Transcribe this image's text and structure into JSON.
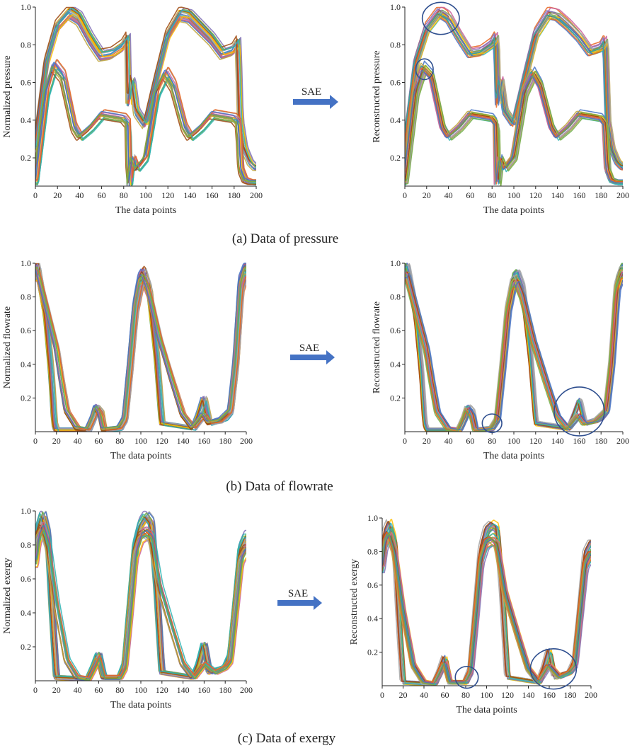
{
  "figure": {
    "palette": [
      "#e8641e",
      "#4472c4",
      "#70ad47",
      "#ffc000",
      "#7f6fb5",
      "#a5a5a5",
      "#9e480e",
      "#2bb3b1",
      "#c95e9a",
      "#bfa53a"
    ],
    "ellipse_color": "#2f4f8f",
    "arrow_color": "#4472c4",
    "arrow_label": "SAE",
    "rows": [
      {
        "caption": "(a) Data of pressure",
        "kind": "pressure",
        "left_ylabel": "Normalized pressure",
        "right_ylabel": "Reconstructed pressure"
      },
      {
        "caption": "(b) Data of flowrate",
        "kind": "flowrate",
        "left_ylabel": "Normalized flowrate",
        "right_ylabel": "Reconstructed flowrate"
      },
      {
        "caption": "(c) Data of exergy",
        "kind": "exergy",
        "left_ylabel": "Normalized exergy",
        "right_ylabel": "Reconstructed exergy"
      }
    ]
  },
  "chart_data": [
    {
      "id": "pressure-normalized",
      "type": "line",
      "title": "",
      "xlabel": "The data points",
      "ylabel": "Normalized pressure",
      "xlim": [
        0,
        200
      ],
      "ylim": [
        0.05,
        1.0
      ],
      "xticks": [
        0,
        20,
        40,
        60,
        80,
        100,
        120,
        140,
        160,
        180,
        200
      ],
      "yticks": [
        0.2,
        0.4,
        0.6,
        0.8,
        1.0
      ],
      "grid": false,
      "legend": "none",
      "series": [
        {
          "x": [
            0,
            10,
            20,
            32,
            40,
            50,
            60,
            70,
            80,
            84,
            85,
            88,
            92,
            100,
            110,
            120,
            132,
            140,
            150,
            160,
            170,
            180,
            184,
            186,
            190,
            195,
            200
          ],
          "y": [
            0.25,
            0.7,
            0.9,
            0.98,
            0.95,
            0.84,
            0.75,
            0.76,
            0.8,
            0.84,
            0.48,
            0.62,
            0.45,
            0.38,
            0.62,
            0.85,
            0.97,
            0.96,
            0.9,
            0.84,
            0.76,
            0.78,
            0.82,
            0.4,
            0.25,
            0.18,
            0.15
          ]
        },
        {
          "x": [
            0,
            10,
            17,
            25,
            35,
            40,
            50,
            60,
            70,
            80,
            84,
            85,
            88,
            92,
            100,
            110,
            118,
            125,
            135,
            140,
            150,
            160,
            170,
            180,
            184,
            186,
            190,
            195,
            200
          ],
          "y": [
            0.07,
            0.55,
            0.69,
            0.63,
            0.36,
            0.31,
            0.36,
            0.43,
            0.42,
            0.41,
            0.38,
            0.05,
            0.2,
            0.14,
            0.2,
            0.55,
            0.65,
            0.58,
            0.36,
            0.31,
            0.36,
            0.43,
            0.42,
            0.41,
            0.38,
            0.14,
            0.08,
            0.07,
            0.07
          ]
        }
      ]
    },
    {
      "id": "pressure-reconstructed",
      "type": "line",
      "title": "",
      "xlabel": "The data points",
      "ylabel": "Reconstructed pressure",
      "xlim": [
        0,
        200
      ],
      "ylim": [
        0.05,
        1.0
      ],
      "xticks": [
        0,
        20,
        40,
        60,
        80,
        100,
        120,
        140,
        160,
        180,
        200
      ],
      "yticks": [
        0.2,
        0.4,
        0.6,
        0.8,
        1.0
      ],
      "grid": false,
      "legend": "none",
      "series": [
        {
          "x": [
            0,
            10,
            20,
            32,
            40,
            50,
            60,
            70,
            80,
            84,
            85,
            88,
            92,
            100,
            110,
            120,
            132,
            140,
            150,
            160,
            170,
            180,
            184,
            186,
            190,
            195,
            200
          ],
          "y": [
            0.25,
            0.7,
            0.88,
            0.97,
            0.94,
            0.84,
            0.75,
            0.76,
            0.8,
            0.84,
            0.48,
            0.62,
            0.45,
            0.38,
            0.62,
            0.85,
            0.96,
            0.95,
            0.9,
            0.84,
            0.76,
            0.78,
            0.82,
            0.4,
            0.25,
            0.18,
            0.15
          ]
        },
        {
          "x": [
            0,
            10,
            17,
            25,
            35,
            40,
            50,
            60,
            70,
            80,
            84,
            85,
            88,
            92,
            100,
            110,
            118,
            125,
            135,
            140,
            150,
            160,
            170,
            180,
            184,
            186,
            190,
            195,
            200
          ],
          "y": [
            0.07,
            0.55,
            0.68,
            0.63,
            0.36,
            0.31,
            0.36,
            0.43,
            0.42,
            0.41,
            0.38,
            0.05,
            0.2,
            0.14,
            0.2,
            0.55,
            0.65,
            0.58,
            0.36,
            0.31,
            0.36,
            0.43,
            0.42,
            0.41,
            0.38,
            0.14,
            0.08,
            0.07,
            0.07
          ]
        }
      ],
      "annotations": [
        {
          "shape": "ellipse",
          "cx": 33,
          "cy": 0.94,
          "rx": 17,
          "ry": 0.085
        },
        {
          "shape": "ellipse",
          "cx": 18,
          "cy": 0.67,
          "rx": 8,
          "ry": 0.055
        }
      ]
    },
    {
      "id": "flowrate-normalized",
      "type": "line",
      "title": "",
      "xlabel": "The data points",
      "ylabel": "Normalized flowrate",
      "xlim": [
        0,
        200
      ],
      "ylim": [
        0,
        1.0
      ],
      "xticks": [
        0,
        20,
        40,
        60,
        80,
        100,
        120,
        140,
        160,
        180,
        200
      ],
      "yticks": [
        0.2,
        0.4,
        0.6,
        0.8,
        1.0
      ],
      "grid": false,
      "legend": "none",
      "series": [
        {
          "x": [
            0,
            2,
            10,
            15,
            18,
            20,
            50,
            55,
            58,
            62,
            65,
            80,
            85,
            90,
            95,
            100,
            103,
            108,
            115,
            120,
            150,
            155,
            160,
            165,
            180,
            185,
            190,
            195,
            200
          ],
          "y": [
            0.95,
            0.98,
            0.7,
            0.35,
            0.05,
            0.01,
            0.01,
            0.08,
            0.15,
            0.12,
            0.01,
            0.02,
            0.08,
            0.4,
            0.75,
            0.92,
            0.95,
            0.85,
            0.45,
            0.05,
            0.02,
            0.1,
            0.2,
            0.05,
            0.08,
            0.12,
            0.4,
            0.9,
            0.98
          ]
        },
        {
          "x": [
            0,
            2,
            10,
            20,
            25,
            30,
            40,
            50,
            55,
            58,
            62,
            65,
            80,
            85,
            90,
            95,
            100,
            103,
            108,
            118,
            130,
            140,
            150,
            160,
            165,
            175,
            185,
            190,
            195,
            200
          ],
          "y": [
            0.92,
            0.95,
            0.75,
            0.5,
            0.3,
            0.12,
            0.02,
            0.01,
            0.08,
            0.14,
            0.1,
            0.01,
            0.02,
            0.07,
            0.38,
            0.72,
            0.88,
            0.9,
            0.82,
            0.55,
            0.3,
            0.1,
            0.02,
            0.1,
            0.05,
            0.06,
            0.12,
            0.4,
            0.85,
            0.95
          ]
        }
      ]
    },
    {
      "id": "flowrate-reconstructed",
      "type": "line",
      "title": "",
      "xlabel": "The data points",
      "ylabel": "Reconstructed flowrate",
      "xlim": [
        0,
        200
      ],
      "ylim": [
        0,
        1.0
      ],
      "xticks": [
        0,
        20,
        40,
        60,
        80,
        100,
        120,
        140,
        160,
        180,
        200
      ],
      "yticks": [
        0.2,
        0.4,
        0.6,
        0.8,
        1.0
      ],
      "grid": false,
      "legend": "none",
      "series": [
        {
          "x": [
            0,
            2,
            10,
            15,
            18,
            20,
            50,
            55,
            58,
            62,
            65,
            80,
            85,
            90,
            95,
            100,
            103,
            108,
            115,
            120,
            150,
            155,
            160,
            165,
            180,
            185,
            190,
            195,
            200
          ],
          "y": [
            0.95,
            0.98,
            0.7,
            0.35,
            0.05,
            0.01,
            0.01,
            0.08,
            0.15,
            0.12,
            0.01,
            0.02,
            0.08,
            0.4,
            0.75,
            0.92,
            0.94,
            0.85,
            0.45,
            0.05,
            0.02,
            0.1,
            0.19,
            0.05,
            0.08,
            0.12,
            0.4,
            0.9,
            0.98
          ]
        },
        {
          "x": [
            0,
            2,
            10,
            20,
            25,
            30,
            40,
            50,
            55,
            58,
            62,
            65,
            80,
            85,
            90,
            95,
            100,
            103,
            108,
            118,
            130,
            140,
            150,
            160,
            165,
            175,
            185,
            190,
            195,
            200
          ],
          "y": [
            0.92,
            0.95,
            0.75,
            0.5,
            0.3,
            0.12,
            0.02,
            0.01,
            0.08,
            0.14,
            0.1,
            0.01,
            0.02,
            0.07,
            0.38,
            0.72,
            0.88,
            0.9,
            0.82,
            0.55,
            0.3,
            0.1,
            0.02,
            0.1,
            0.05,
            0.06,
            0.12,
            0.4,
            0.85,
            0.95
          ]
        }
      ],
      "annotations": [
        {
          "shape": "ellipse",
          "cx": 80,
          "cy": 0.05,
          "rx": 9,
          "ry": 0.055
        },
        {
          "shape": "ellipse",
          "cx": 160,
          "cy": 0.12,
          "rx": 23,
          "ry": 0.145
        }
      ]
    },
    {
      "id": "exergy-normalized",
      "type": "line",
      "title": "",
      "xlabel": "The data points",
      "ylabel": "Normalized exergy",
      "xlim": [
        0,
        200
      ],
      "ylim": [
        0,
        1.0
      ],
      "xticks": [
        0,
        20,
        40,
        60,
        80,
        100,
        120,
        140,
        160,
        180,
        200
      ],
      "yticks": [
        0.2,
        0.4,
        0.6,
        0.8,
        1.0
      ],
      "grid": false,
      "legend": "none",
      "series": [
        {
          "x": [
            0,
            3,
            7,
            12,
            16,
            20,
            50,
            55,
            60,
            65,
            80,
            85,
            90,
            95,
            100,
            105,
            110,
            115,
            120,
            150,
            155,
            160,
            165,
            180,
            185,
            190,
            195,
            200
          ],
          "y": [
            0.72,
            0.9,
            0.98,
            0.85,
            0.4,
            0.02,
            0.01,
            0.08,
            0.16,
            0.02,
            0.02,
            0.1,
            0.45,
            0.8,
            0.92,
            0.97,
            0.93,
            0.55,
            0.05,
            0.02,
            0.1,
            0.22,
            0.05,
            0.08,
            0.15,
            0.45,
            0.78,
            0.85
          ]
        },
        {
          "x": [
            0,
            3,
            7,
            12,
            20,
            30,
            40,
            50,
            55,
            60,
            65,
            80,
            85,
            90,
            95,
            100,
            105,
            110,
            118,
            130,
            140,
            150,
            160,
            170,
            180,
            185,
            190,
            195,
            200
          ],
          "y": [
            0.7,
            0.85,
            0.9,
            0.8,
            0.45,
            0.12,
            0.02,
            0.01,
            0.07,
            0.14,
            0.02,
            0.02,
            0.08,
            0.4,
            0.75,
            0.85,
            0.87,
            0.84,
            0.55,
            0.3,
            0.1,
            0.02,
            0.1,
            0.05,
            0.08,
            0.12,
            0.42,
            0.72,
            0.78
          ]
        }
      ]
    },
    {
      "id": "exergy-reconstructed",
      "type": "line",
      "title": "",
      "xlabel": "The data points",
      "ylabel": "Reconstructed exergy",
      "xlim": [
        0,
        200
      ],
      "ylim": [
        0,
        1.0
      ],
      "xticks": [
        0,
        20,
        40,
        60,
        80,
        100,
        120,
        140,
        160,
        180,
        200
      ],
      "yticks": [
        0.2,
        0.4,
        0.6,
        0.8,
        1.0
      ],
      "grid": false,
      "legend": "none",
      "series": [
        {
          "x": [
            0,
            3,
            7,
            12,
            16,
            20,
            50,
            55,
            60,
            65,
            80,
            85,
            90,
            95,
            100,
            105,
            110,
            115,
            120,
            150,
            155,
            160,
            165,
            180,
            185,
            190,
            195,
            200
          ],
          "y": [
            0.72,
            0.9,
            0.96,
            0.85,
            0.4,
            0.02,
            0.01,
            0.08,
            0.17,
            0.02,
            0.02,
            0.1,
            0.45,
            0.8,
            0.92,
            0.95,
            0.93,
            0.55,
            0.05,
            0.02,
            0.1,
            0.21,
            0.05,
            0.08,
            0.15,
            0.45,
            0.78,
            0.84
          ]
        },
        {
          "x": [
            0,
            3,
            7,
            12,
            20,
            30,
            40,
            50,
            55,
            60,
            65,
            80,
            85,
            90,
            95,
            100,
            105,
            110,
            118,
            130,
            140,
            150,
            160,
            170,
            180,
            185,
            190,
            195,
            200
          ],
          "y": [
            0.7,
            0.85,
            0.9,
            0.8,
            0.45,
            0.12,
            0.02,
            0.01,
            0.07,
            0.14,
            0.02,
            0.02,
            0.08,
            0.4,
            0.75,
            0.85,
            0.87,
            0.84,
            0.55,
            0.3,
            0.1,
            0.02,
            0.12,
            0.05,
            0.08,
            0.12,
            0.42,
            0.72,
            0.78
          ]
        }
      ],
      "annotations": [
        {
          "shape": "ellipse",
          "cx": 81,
          "cy": 0.05,
          "rx": 11,
          "ry": 0.065
        },
        {
          "shape": "ellipse",
          "cx": 164,
          "cy": 0.1,
          "rx": 22,
          "ry": 0.12
        }
      ]
    }
  ]
}
